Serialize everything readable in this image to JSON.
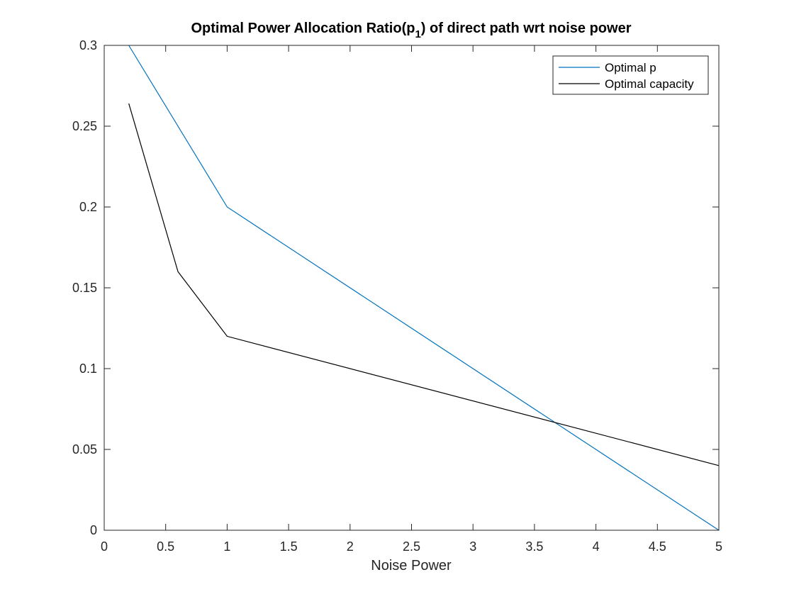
{
  "chart_data": {
    "type": "line",
    "title": {
      "prefix": "Optimal Power Allocation Ratio(p",
      "subscript": "1",
      "suffix": ") of direct path wrt noise power"
    },
    "xlabel": "Noise Power",
    "ylabel": "",
    "xlim": [
      0,
      5
    ],
    "ylim": [
      0,
      0.3
    ],
    "x_ticks": [
      0,
      0.5,
      1,
      1.5,
      2,
      2.5,
      3,
      3.5,
      4,
      4.5,
      5
    ],
    "x_tick_labels": [
      "0",
      "0.5",
      "1",
      "1.5",
      "2",
      "2.5",
      "3",
      "3.5",
      "4",
      "4.5",
      "5"
    ],
    "y_ticks": [
      0,
      0.05,
      0.1,
      0.15,
      0.2,
      0.25,
      0.3
    ],
    "y_tick_labels": [
      "0",
      "0.05",
      "0.1",
      "0.15",
      "0.2",
      "0.25",
      "0.3"
    ],
    "grid": false,
    "legend_position": "top-right",
    "series": [
      {
        "name": "Optimal p",
        "color": "#0072BD",
        "x": [
          0.2,
          1,
          5
        ],
        "y": [
          0.3,
          0.2,
          0
        ]
      },
      {
        "name": "Optimal capacity",
        "color": "#000000",
        "x": [
          0.2,
          0.6,
          1,
          5
        ],
        "y": [
          0.264,
          0.16,
          0.12,
          0.04
        ]
      }
    ]
  }
}
